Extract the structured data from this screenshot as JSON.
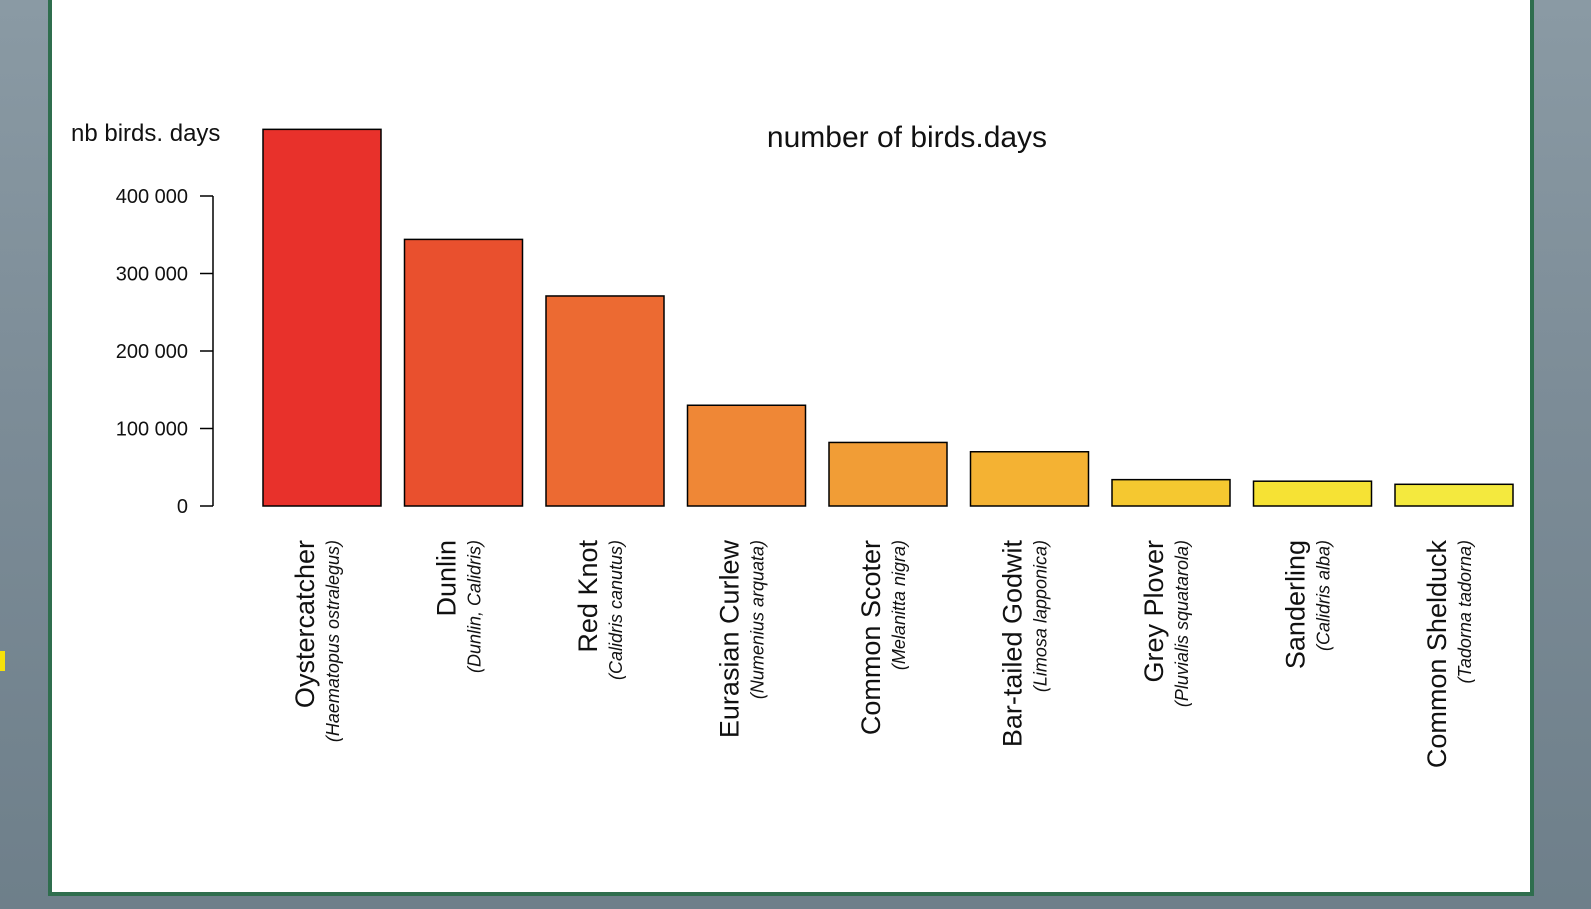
{
  "chart_data": {
    "type": "bar",
    "title": "number of birds.days",
    "ylabel": "nb birds. days",
    "xlabel": "",
    "ylim": [
      0,
      480000
    ],
    "yticks": [
      0,
      100000,
      200000,
      300000,
      400000
    ],
    "ytick_labels": [
      "0",
      "100 000",
      "200 000",
      "300 000",
      "400 000"
    ],
    "grid": false,
    "categories": [
      {
        "name": "Oystercatcher",
        "latin": "(Haematopus ostralegus)"
      },
      {
        "name": "Dunlin",
        "latin": "(Dunlin, Calidris)"
      },
      {
        "name": "Red Knot",
        "latin": "(Calidris canutus)"
      },
      {
        "name": "Eurasian Curlew",
        "latin": "(Numenius arquata)"
      },
      {
        "name": "Common Scoter",
        "latin": "(Melanitta nigra)"
      },
      {
        "name": "Bar-tailed Godwit",
        "latin": "(Limosa lapponica)"
      },
      {
        "name": "Grey Plover",
        "latin": "(Pluvialis squatarola)"
      },
      {
        "name": "Sanderling",
        "latin": "(Calidris alba)"
      },
      {
        "name": "Common Shelduck",
        "latin": "(Tadorna tadorna)"
      }
    ],
    "values": [
      486000,
      344000,
      271000,
      130000,
      82000,
      70000,
      34000,
      32000,
      28000
    ],
    "colors": [
      "#e8312b",
      "#e9502e",
      "#ec6a32",
      "#ef8736",
      "#f19d36",
      "#f4b233",
      "#f5c830",
      "#f6e234",
      "#f4e93e"
    ]
  }
}
